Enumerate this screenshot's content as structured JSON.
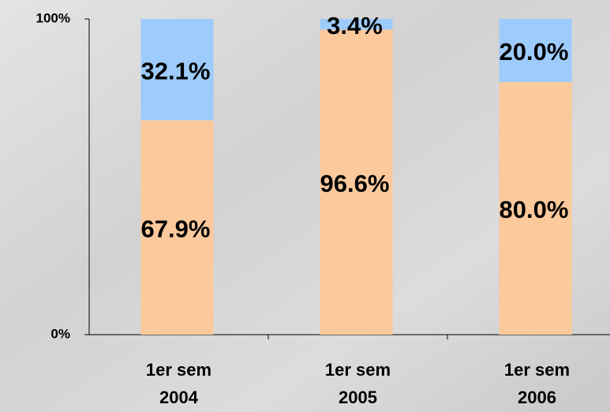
{
  "chart_data": {
    "type": "stacked_bar",
    "categories": [
      [
        "1er sem",
        "2004"
      ],
      [
        "1er sem",
        "2005"
      ],
      [
        "1er sem",
        "2006"
      ]
    ],
    "series": [
      {
        "color": "#fbc99c",
        "values": [
          67.9,
          96.6,
          80.0
        ],
        "value_labels": [
          "67.9%",
          "96.6%",
          "80.0%"
        ]
      },
      {
        "color": "#9dcbfb",
        "values": [
          32.1,
          3.4,
          20.0
        ],
        "value_labels": [
          "32.1%",
          "3.4%",
          "20.0%"
        ]
      }
    ],
    "ylim": [
      0,
      100
    ],
    "yticks": [
      {
        "value": 0,
        "label": "0%"
      },
      {
        "value": 100,
        "label": "100%"
      }
    ]
  }
}
